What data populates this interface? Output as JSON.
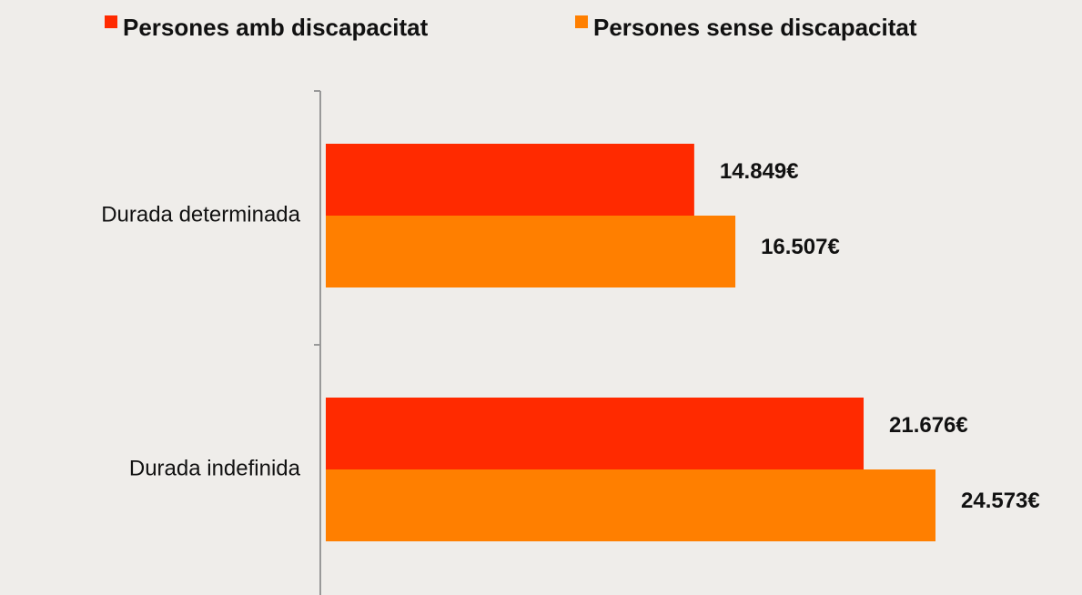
{
  "chart_data": {
    "type": "bar",
    "orientation": "horizontal",
    "categories": [
      "Durada determinada",
      "Durada indefinida"
    ],
    "series": [
      {
        "name": "Persones amb discapacitat",
        "color": "#ff2a00",
        "values": [
          14849,
          21676
        ],
        "value_labels": [
          "14.849€",
          "21.676€"
        ]
      },
      {
        "name": "Persones sense discapacitat",
        "color": "#ff7f00",
        "values": [
          16507,
          24573
        ],
        "value_labels": [
          "16.507€",
          "24.573€"
        ]
      }
    ],
    "legend": "top"
  }
}
